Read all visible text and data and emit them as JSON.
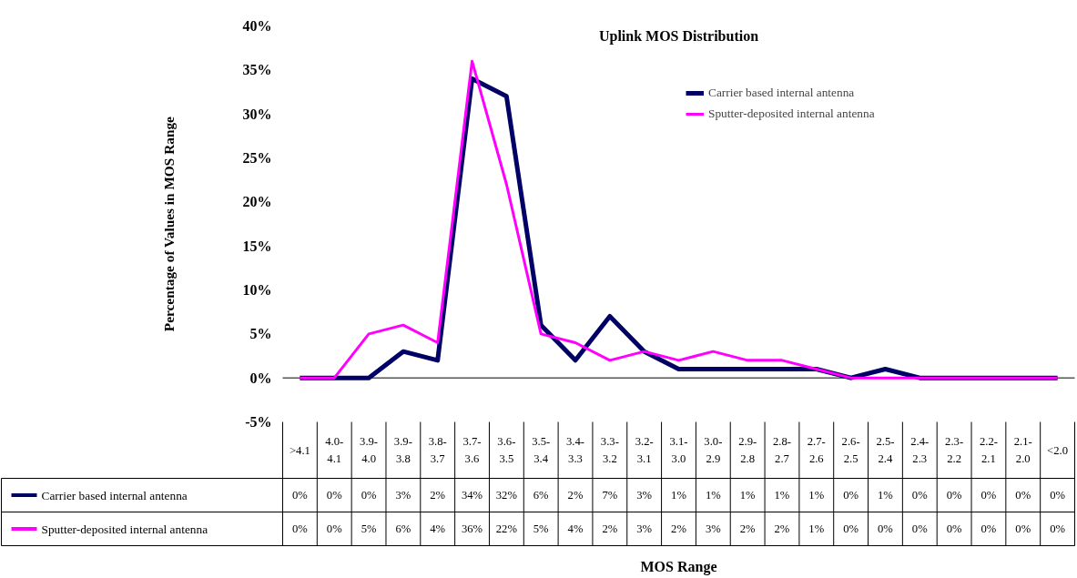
{
  "chart_data": {
    "type": "line",
    "title": "Uplink MOS Distribution",
    "annotations": [
      "MOS Range"
    ],
    "ylabel": "Percentage of Values in MOS Range",
    "categories": [
      ">4.1",
      "4.0-4.1",
      "3.9-4.0",
      "3.9-3.8",
      "3.8-3.7",
      "3.7-3.6",
      "3.6-3.5",
      "3.5-3.4",
      "3.4-3.3",
      "3.3-3.2",
      "3.2-3.1",
      "3.1-3.0",
      "3.0-2.9",
      "2.9-2.8",
      "2.8-2.7",
      "2.7-2.6",
      "2.6-2.5",
      "2.5-2.4",
      "2.4-2.3",
      "2.3-2.2",
      "2.2-2.1",
      "2.1-2.0",
      "<2.0"
    ],
    "ylim": [
      -5,
      40
    ],
    "yticks": [
      {
        "value": -5,
        "label": "-5%"
      },
      {
        "value": 0,
        "label": "0%"
      },
      {
        "value": 5,
        "label": "5%"
      },
      {
        "value": 10,
        "label": "10%"
      },
      {
        "value": 15,
        "label": "15%"
      },
      {
        "value": 20,
        "label": "20%"
      },
      {
        "value": 25,
        "label": "25%"
      },
      {
        "value": 30,
        "label": "30%"
      },
      {
        "value": 35,
        "label": "35%"
      },
      {
        "value": 40,
        "label": "40%"
      }
    ],
    "legend": "top right",
    "marker": "none",
    "line_style": "solid",
    "series": [
      {
        "name": "Carrier based internal antenna",
        "color": "#000066",
        "values": [
          0,
          0,
          0,
          3,
          2,
          34,
          32,
          6,
          2,
          7,
          3,
          1,
          1,
          1,
          1,
          1,
          0,
          1,
          0,
          0,
          0,
          0,
          0
        ],
        "value_labels": [
          "0%",
          "0%",
          "0%",
          "3%",
          "2%",
          "34%",
          "32%",
          "6%",
          "2%",
          "7%",
          "3%",
          "1%",
          "1%",
          "1%",
          "1%",
          "1%",
          "0%",
          "1%",
          "0%",
          "0%",
          "0%",
          "0%",
          "0%"
        ]
      },
      {
        "name": "Sputter-deposited internal antenna",
        "color": "#ff00ff",
        "values": [
          0,
          0,
          5,
          6,
          4,
          36,
          22,
          5,
          4,
          2,
          3,
          2,
          3,
          2,
          2,
          1,
          0,
          0,
          0,
          0,
          0,
          0,
          0
        ],
        "value_labels": [
          "0%",
          "0%",
          "5%",
          "6%",
          "4%",
          "36%",
          "22%",
          "5%",
          "4%",
          "2%",
          "3%",
          "2%",
          "3%",
          "2%",
          "2%",
          "1%",
          "0%",
          "0%",
          "0%",
          "0%",
          "0%",
          "0%",
          "0%"
        ]
      }
    ]
  }
}
